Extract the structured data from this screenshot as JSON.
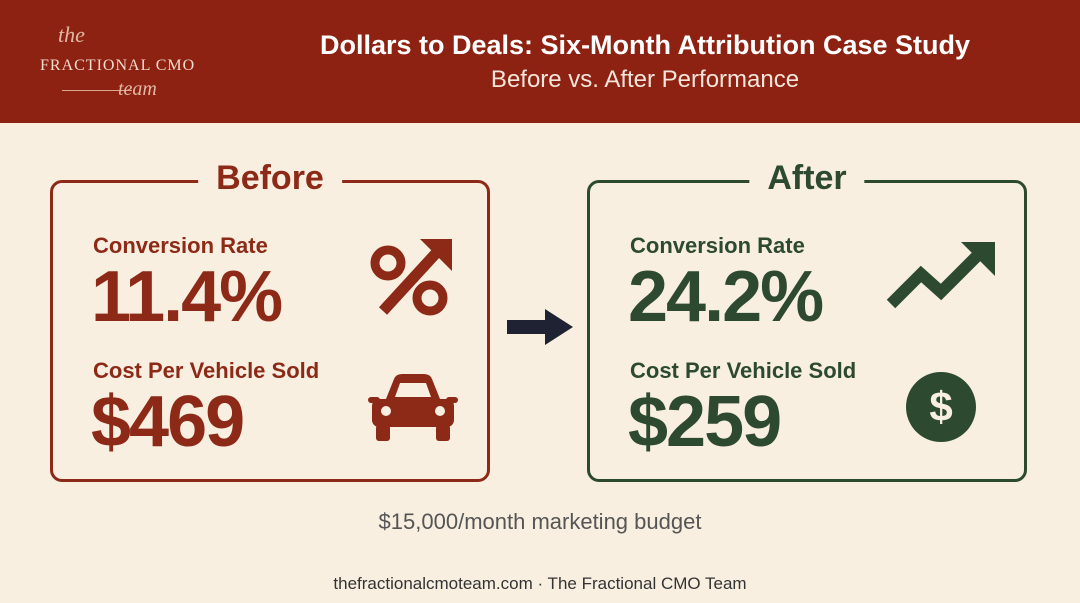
{
  "header": {
    "logo": {
      "top": "the",
      "middle": "FRACTIONAL CMO",
      "bottom": "team"
    },
    "title": "Dollars to Deals: Six-Month Attribution Case Study",
    "subtitle": "Before vs. After Performance"
  },
  "panels": [
    {
      "heading": "Before",
      "metrics": [
        {
          "label": "Conversion Rate",
          "value": "11.4%"
        },
        {
          "label": "Cost Per Vehicle Sold",
          "value": "$469"
        }
      ]
    },
    {
      "heading": "After",
      "metrics": [
        {
          "label": "Conversion Rate",
          "value": "24.2%"
        },
        {
          "label": "Cost Per Vehicle Sold",
          "value": "$259"
        }
      ]
    }
  ],
  "note": "$15,000/month marketing budget",
  "footer": "thefractionalcmoteam.com · The Fractional CMO Team"
}
